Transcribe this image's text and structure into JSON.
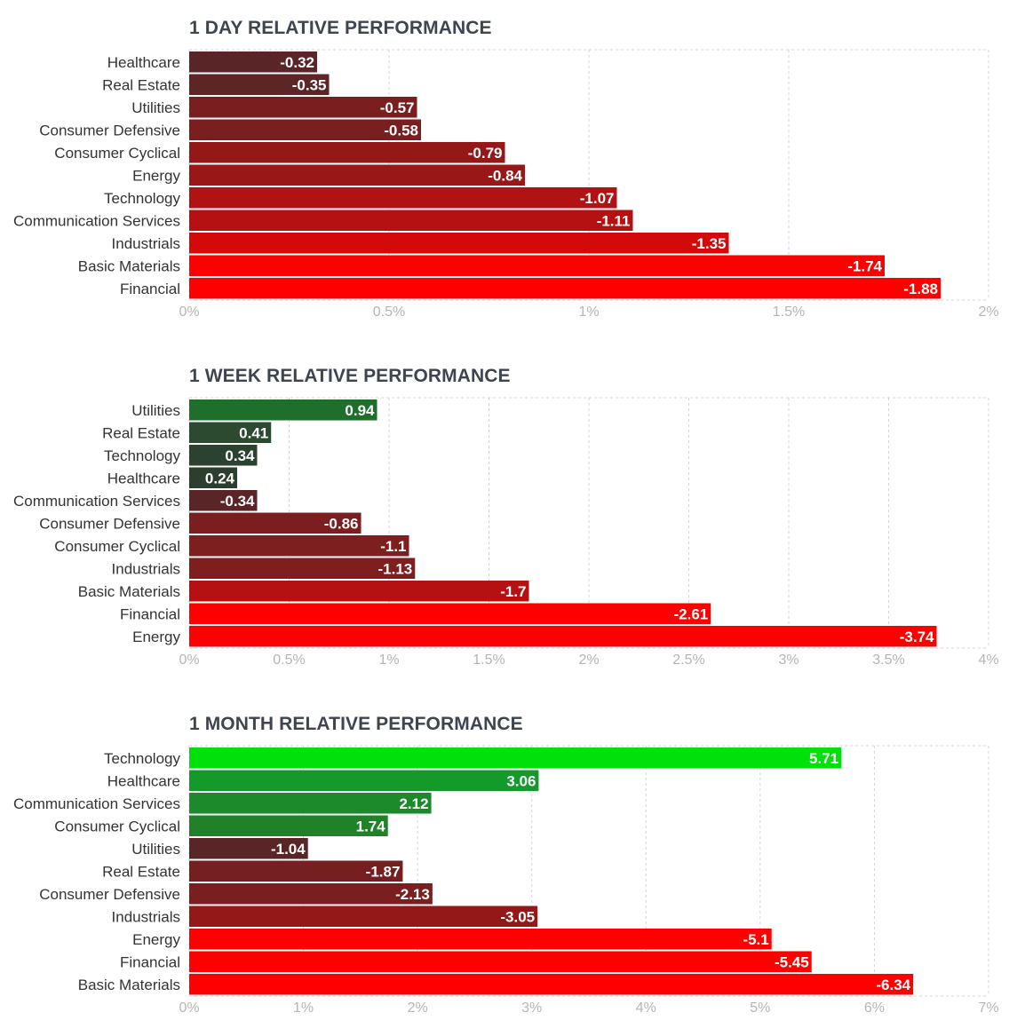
{
  "chart_data": [
    {
      "type": "bar",
      "orientation": "horizontal",
      "title": "1 DAY RELATIVE PERFORMANCE",
      "categories": [
        "Healthcare",
        "Real Estate",
        "Utilities",
        "Consumer Defensive",
        "Consumer Cyclical",
        "Energy",
        "Technology",
        "Communication Services",
        "Industrials",
        "Basic Materials",
        "Financial"
      ],
      "values": [
        -0.32,
        -0.35,
        -0.57,
        -0.58,
        -0.79,
        -0.84,
        -1.07,
        -1.11,
        -1.35,
        -1.74,
        -1.88
      ],
      "value_labels": [
        "-0.32",
        "-0.35",
        "-0.57",
        "-0.58",
        "-0.79",
        "-0.84",
        "-1.07",
        "-1.11",
        "-1.35",
        "-1.74",
        "-1.88"
      ],
      "xlim": [
        0,
        2
      ],
      "ticks": [
        0,
        0.5,
        1,
        1.5,
        2
      ],
      "tick_labels": [
        "0%",
        "0.5%",
        "1%",
        "1.5%",
        "2%"
      ],
      "colors": [
        "#5a2526",
        "#5e2526",
        "#7a1e1f",
        "#7b1e1f",
        "#951819",
        "#9a1718",
        "#b11213",
        "#b61112",
        "#d20a0a",
        "#fb0202",
        "#ff0000"
      ]
    },
    {
      "type": "bar",
      "orientation": "horizontal",
      "title": "1 WEEK RELATIVE PERFORMANCE",
      "categories": [
        "Utilities",
        "Real Estate",
        "Technology",
        "Healthcare",
        "Communication Services",
        "Consumer Defensive",
        "Consumer Cyclical",
        "Industrials",
        "Basic Materials",
        "Financial",
        "Energy"
      ],
      "values": [
        0.94,
        0.41,
        0.34,
        0.24,
        -0.34,
        -0.86,
        -1.1,
        -1.13,
        -1.7,
        -2.61,
        -3.74
      ],
      "value_labels": [
        "0.94",
        "0.41",
        "0.34",
        "0.24",
        "-0.34",
        "-0.86",
        "-1.1",
        "-1.13",
        "-1.7",
        "-2.61",
        "-3.74"
      ],
      "xlim": [
        0,
        4
      ],
      "ticks": [
        0,
        0.5,
        1,
        1.5,
        2,
        2.5,
        3,
        3.5,
        4
      ],
      "tick_labels": [
        "0%",
        "0.5%",
        "1%",
        "1.5%",
        "2%",
        "2.5%",
        "3%",
        "3.5%",
        "4%"
      ],
      "colors": [
        "#1f6e2c",
        "#2b4a30",
        "#2c4230",
        "#2c3e2d",
        "#5a2526",
        "#7a1e1f",
        "#7d1e1f",
        "#7f1e1f",
        "#b51112",
        "#ff0000",
        "#ff0000"
      ]
    },
    {
      "type": "bar",
      "orientation": "horizontal",
      "title": "1 MONTH RELATIVE PERFORMANCE",
      "categories": [
        "Technology",
        "Healthcare",
        "Communication Services",
        "Consumer Cyclical",
        "Utilities",
        "Real Estate",
        "Consumer Defensive",
        "Industrials",
        "Energy",
        "Financial",
        "Basic Materials"
      ],
      "values": [
        5.71,
        3.06,
        2.12,
        1.74,
        -1.04,
        -1.87,
        -2.13,
        -3.05,
        -5.1,
        -5.45,
        -6.34
      ],
      "value_labels": [
        "5.71",
        "3.06",
        "2.12",
        "1.74",
        "-1.04",
        "-1.87",
        "-2.13",
        "-3.05",
        "-5.1",
        "-5.45",
        "-6.34"
      ],
      "xlim": [
        0,
        7
      ],
      "ticks": [
        0,
        1,
        2,
        3,
        4,
        5,
        6,
        7
      ],
      "tick_labels": [
        "0%",
        "1%",
        "2%",
        "3%",
        "4%",
        "5%",
        "6%",
        "7%"
      ],
      "colors": [
        "#00e00a",
        "#139a2a",
        "#1c8a2b",
        "#208129",
        "#5a2526",
        "#751f20",
        "#7b1e1f",
        "#951819",
        "#ff0000",
        "#ff0000",
        "#ff0000"
      ]
    }
  ]
}
